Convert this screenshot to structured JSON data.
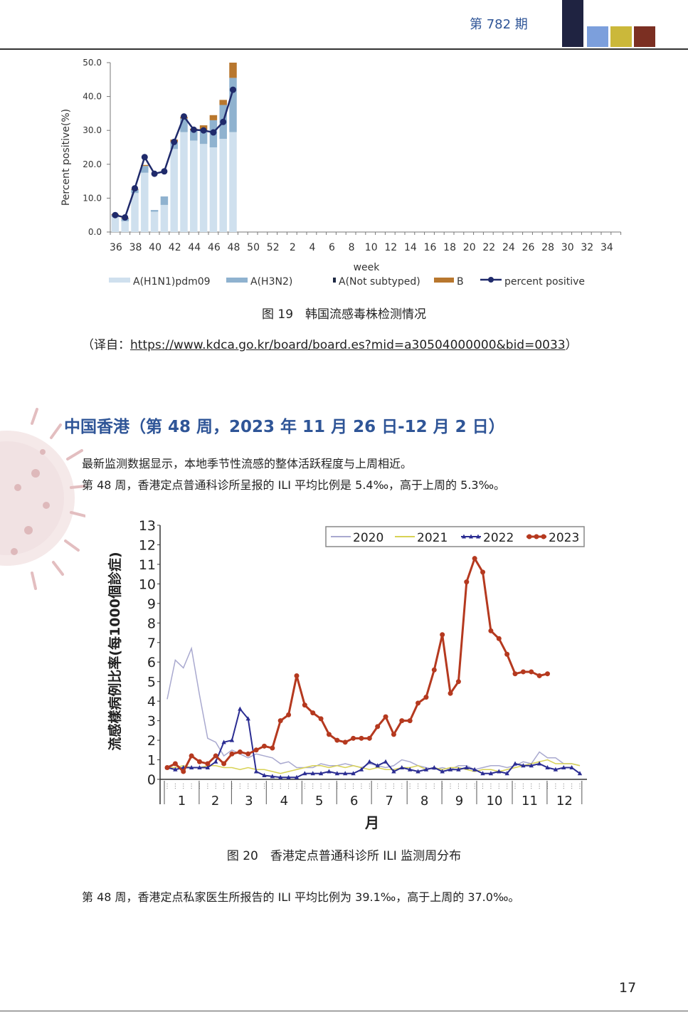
{
  "header": {
    "issue": "第 782 期",
    "squares": [
      "#1f2341",
      "#7c9fdc",
      "#cbb83a",
      "#7b2f22"
    ]
  },
  "figure19": {
    "caption": "图 19　韩国流感毒株检测情况",
    "source_prefix": "（译自：",
    "source_url": "https://www.kdca.go.kr/board/board.es?mid=a30504000000&bid=0033",
    "source_suffix": "）",
    "chart_data": {
      "type": "bar",
      "stacked": true,
      "xlabel": "week",
      "ylabel": "Percent positive(%)",
      "ylim": [
        0,
        50
      ],
      "yticks": [
        "0.0",
        "10.0",
        "20.0",
        "30.0",
        "40.0",
        "50.0"
      ],
      "xticks": [
        "36",
        "38",
        "40",
        "42",
        "44",
        "46",
        "48",
        "50",
        "52",
        "2",
        "4",
        "6",
        "8",
        "10",
        "12",
        "14",
        "16",
        "18",
        "20",
        "22",
        "24",
        "26",
        "28",
        "30",
        "32",
        "34"
      ],
      "categories": [
        "36",
        "37",
        "38",
        "39",
        "40",
        "41",
        "42",
        "43",
        "44",
        "45",
        "46",
        "47",
        "48"
      ],
      "series": [
        {
          "name": "A(H1N1)pdm09",
          "color": "#cfe0ee",
          "values": [
            4.5,
            3.2,
            11.5,
            17.5,
            6.0,
            8.0,
            24.5,
            29.5,
            27.0,
            26.0,
            25.0,
            27.5,
            29.5
          ]
        },
        {
          "name": "A(H3N2)",
          "color": "#8fb2cf",
          "values": [
            0.5,
            0.8,
            1.0,
            2.0,
            0.5,
            2.5,
            2.0,
            4.0,
            3.0,
            4.0,
            8.0,
            10.0,
            16.0
          ]
        },
        {
          "name": "A(Not subtyped)",
          "color": "#1f2a44",
          "values": [
            0,
            0,
            0,
            0,
            0,
            0,
            0,
            0,
            0,
            0,
            0,
            0,
            0
          ]
        },
        {
          "name": "B",
          "color": "#b8772e",
          "values": [
            0.3,
            0.2,
            0.2,
            0.3,
            0,
            0,
            0.8,
            0.5,
            0.5,
            1.5,
            1.5,
            1.5,
            4.5
          ]
        }
      ],
      "line": {
        "name": "percent positive",
        "color": "#1f2a6b",
        "values": [
          5.0,
          4.3,
          12.9,
          22.1,
          17.2,
          17.9,
          26.6,
          34.1,
          30.2,
          30.0,
          29.4,
          32.5,
          42.0
        ]
      },
      "legend": "bottom"
    }
  },
  "section": {
    "title": "中国香港（第 48 周，2023 年 11 月 26 日-12 月 2 日）",
    "para1": "最新监测数据显示，本地季节性流感的整体活跃程度与上周相近。",
    "para2": "第 48 周，香港定点普通科诊所呈报的 ILI 平均比例是 5.4‰，高于上周的 5.3‰。",
    "para3": "第 48 周，香港定点私家医生所报告的 ILI 平均比例为 39.1‰，高于上周的 37.0‰。"
  },
  "figure20": {
    "caption": "图 20　香港定点普通科诊所 ILI 监测周分布",
    "chart_data": {
      "type": "line",
      "ylabel": "流感樣病例比率(每1000個診症)",
      "xlabel": "月",
      "ylim": [
        0,
        13
      ],
      "yticks": [
        "0",
        "1",
        "2",
        "3",
        "4",
        "5",
        "6",
        "7",
        "8",
        "9",
        "10",
        "11",
        "12",
        "13"
      ],
      "months": [
        "1",
        "2",
        "3",
        "4",
        "5",
        "6",
        "7",
        "8",
        "9",
        "10",
        "11",
        "12"
      ],
      "legend": "top-right",
      "series": [
        {
          "name": "2020",
          "color": "#a9a9cf",
          "marker": "none",
          "values": [
            4.1,
            6.1,
            5.7,
            6.7,
            4.3,
            2.1,
            1.9,
            1.2,
            1.5,
            1.3,
            1.1,
            1.3,
            1.2,
            1.1,
            0.8,
            0.9,
            0.6,
            0.6,
            0.6,
            0.8,
            0.7,
            0.7,
            0.8,
            0.7,
            0.6,
            0.8,
            0.7,
            0.6,
            0.7,
            1.0,
            0.9,
            0.7,
            0.6,
            0.5,
            0.6,
            0.5,
            0.7,
            0.7,
            0.5,
            0.6,
            0.7,
            0.7,
            0.6,
            0.7,
            0.9,
            0.8,
            1.4,
            1.1,
            1.1,
            0.8,
            0.8,
            0.7
          ]
        },
        {
          "name": "2021",
          "color": "#d8d255",
          "marker": "none",
          "values": [
            0.6,
            0.6,
            0.7,
            0.6,
            0.6,
            0.7,
            0.7,
            0.6,
            0.6,
            0.5,
            0.6,
            0.5,
            0.5,
            0.4,
            0.3,
            0.4,
            0.5,
            0.6,
            0.7,
            0.7,
            0.6,
            0.7,
            0.6,
            0.7,
            0.6,
            0.5,
            0.6,
            0.5,
            0.5,
            0.6,
            0.6,
            0.7,
            0.5,
            0.6,
            0.5,
            0.6,
            0.6,
            0.5,
            0.4,
            0.5,
            0.5,
            0.4,
            0.5,
            0.6,
            0.7,
            0.8,
            0.9,
            1.0,
            0.8,
            0.8,
            0.8,
            0.7
          ]
        },
        {
          "name": "2022",
          "color": "#2b2d92",
          "marker": "triangle",
          "values": [
            0.6,
            0.5,
            0.6,
            0.6,
            0.6,
            0.6,
            0.9,
            1.9,
            2.0,
            3.6,
            3.1,
            0.4,
            0.2,
            0.15,
            0.1,
            0.1,
            0.1,
            0.3,
            0.3,
            0.3,
            0.4,
            0.3,
            0.3,
            0.3,
            0.5,
            0.9,
            0.7,
            0.9,
            0.4,
            0.6,
            0.5,
            0.4,
            0.5,
            0.6,
            0.4,
            0.5,
            0.5,
            0.6,
            0.5,
            0.3,
            0.3,
            0.4,
            0.3,
            0.8,
            0.7,
            0.7,
            0.8,
            0.6,
            0.5,
            0.6,
            0.6,
            0.3
          ]
        },
        {
          "name": "2023",
          "color": "#b5391f",
          "marker": "circle",
          "values": [
            0.6,
            0.8,
            0.4,
            1.2,
            0.9,
            0.8,
            1.2,
            0.8,
            1.3,
            1.4,
            1.3,
            1.5,
            1.7,
            1.6,
            3.0,
            3.3,
            5.3,
            3.8,
            3.4,
            3.1,
            2.3,
            2.0,
            1.9,
            2.1,
            2.1,
            2.1,
            2.7,
            3.2,
            2.3,
            3.0,
            3.0,
            3.9,
            4.2,
            5.6,
            7.4,
            4.4,
            5.0,
            10.1,
            11.3,
            10.6,
            7.6,
            7.2,
            6.4,
            5.4,
            5.5,
            5.5,
            5.3,
            5.4
          ]
        }
      ]
    }
  },
  "page_number": "17"
}
